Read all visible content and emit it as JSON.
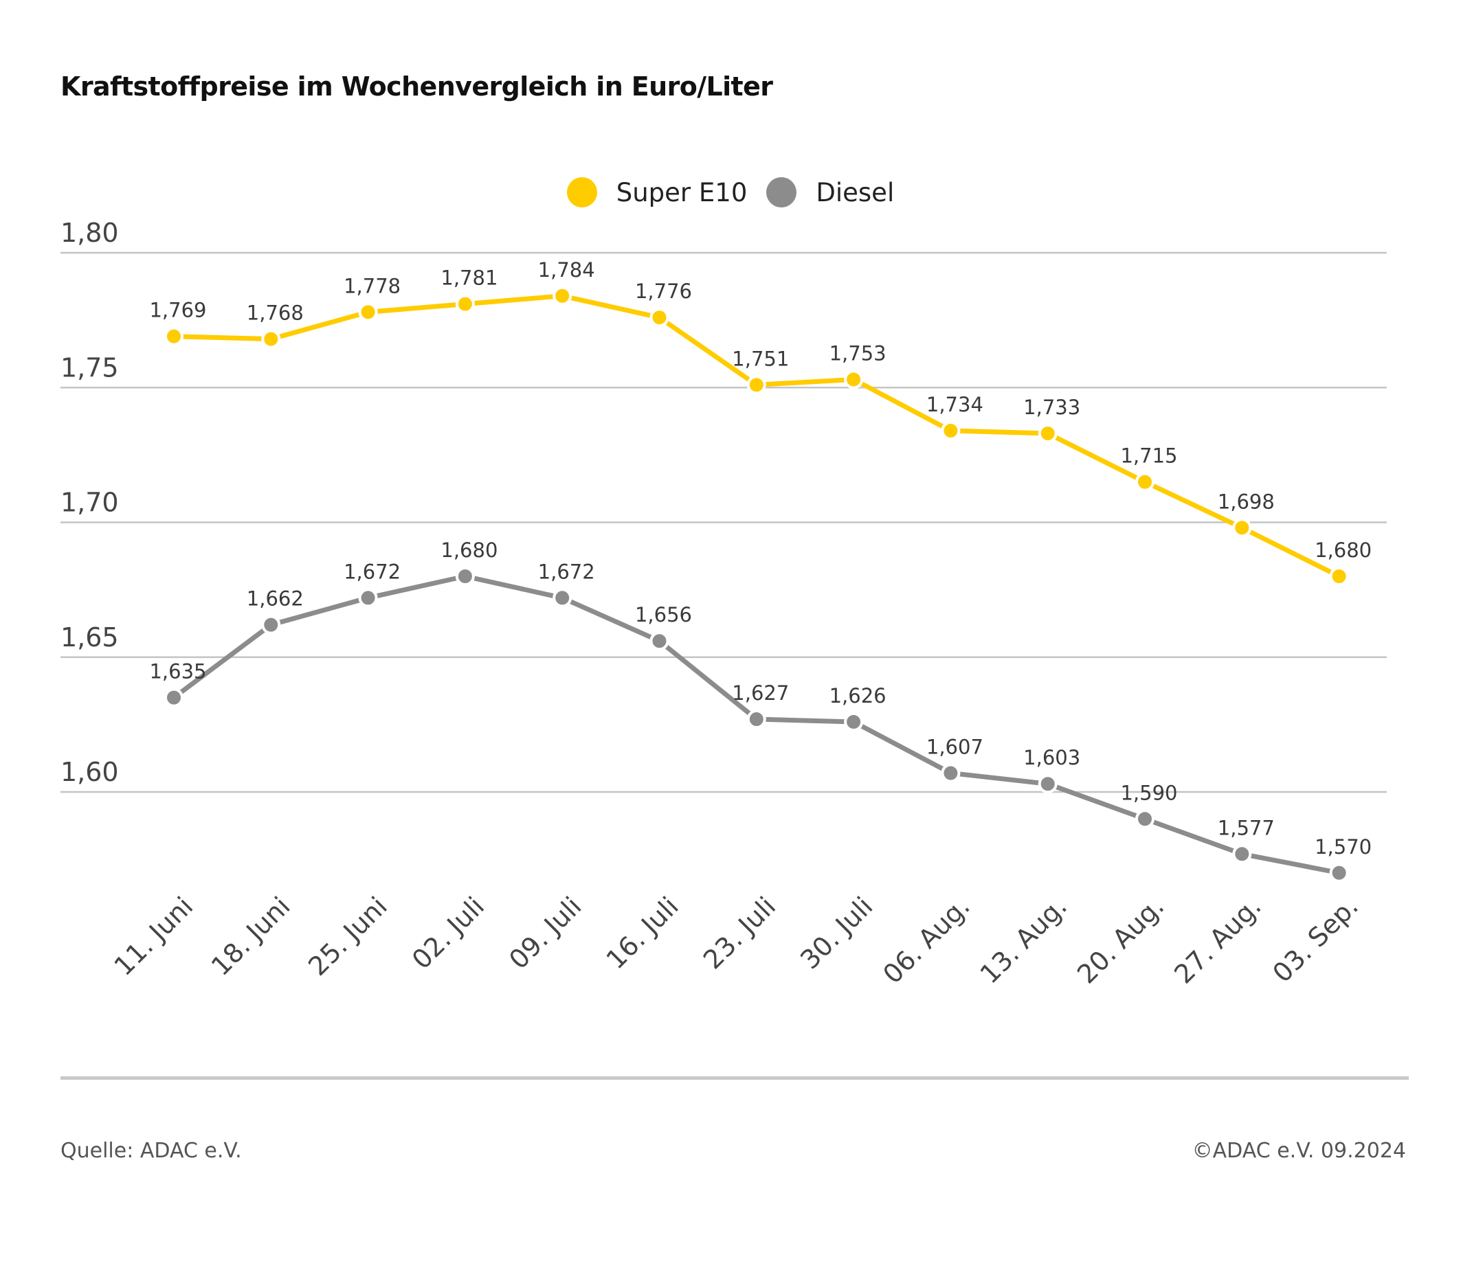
{
  "title": "Kraftstoffpreise im Wochenvergleich in Euro/Liter",
  "legend": [
    {
      "name": "Super E10",
      "color": "#FFCC00"
    },
    {
      "name": "Diesel",
      "color": "#8C8C8C"
    }
  ],
  "footer": {
    "source": "Quelle: ADAC e.V.",
    "copyright": "©ADAC e.V. 09.2024"
  },
  "chart_data": {
    "type": "line",
    "title": "Kraftstoffpreise im Wochenvergleich in Euro/Liter",
    "xlabel": "",
    "ylabel": "",
    "ylim": [
      1.55,
      1.8
    ],
    "yticks": [
      1.6,
      1.65,
      1.7,
      1.75,
      1.8
    ],
    "ytick_labels": [
      "1,60",
      "1,65",
      "1,70",
      "1,75",
      "1,80"
    ],
    "grid": true,
    "legend_position": "top-center",
    "categories": [
      "11. Juni",
      "18. Juni",
      "25. Juni",
      "02. Juli",
      "09. Juli",
      "16. Juli",
      "23. Juli",
      "30. Juli",
      "06. Aug.",
      "13. Aug.",
      "20. Aug.",
      "27. Aug.",
      "03. Sep."
    ],
    "series": [
      {
        "name": "Super E10",
        "color": "#FFCC00",
        "values": [
          1.769,
          1.768,
          1.778,
          1.781,
          1.784,
          1.776,
          1.751,
          1.753,
          1.734,
          1.733,
          1.715,
          1.698,
          1.68
        ],
        "labels": [
          "1,769",
          "1,768",
          "1,778",
          "1,781",
          "1,784",
          "1,776",
          "1,751",
          "1,753",
          "1,734",
          "1,733",
          "1,715",
          "1,698",
          "1,680"
        ]
      },
      {
        "name": "Diesel",
        "color": "#8C8C8C",
        "values": [
          1.635,
          1.662,
          1.672,
          1.68,
          1.672,
          1.656,
          1.627,
          1.626,
          1.607,
          1.603,
          1.59,
          1.577,
          1.57
        ],
        "labels": [
          "1,635",
          "1,662",
          "1,672",
          "1,680",
          "1,672",
          "1,656",
          "1,627",
          "1,626",
          "1,607",
          "1,603",
          "1,590",
          "1,577",
          "1,570"
        ]
      }
    ]
  }
}
